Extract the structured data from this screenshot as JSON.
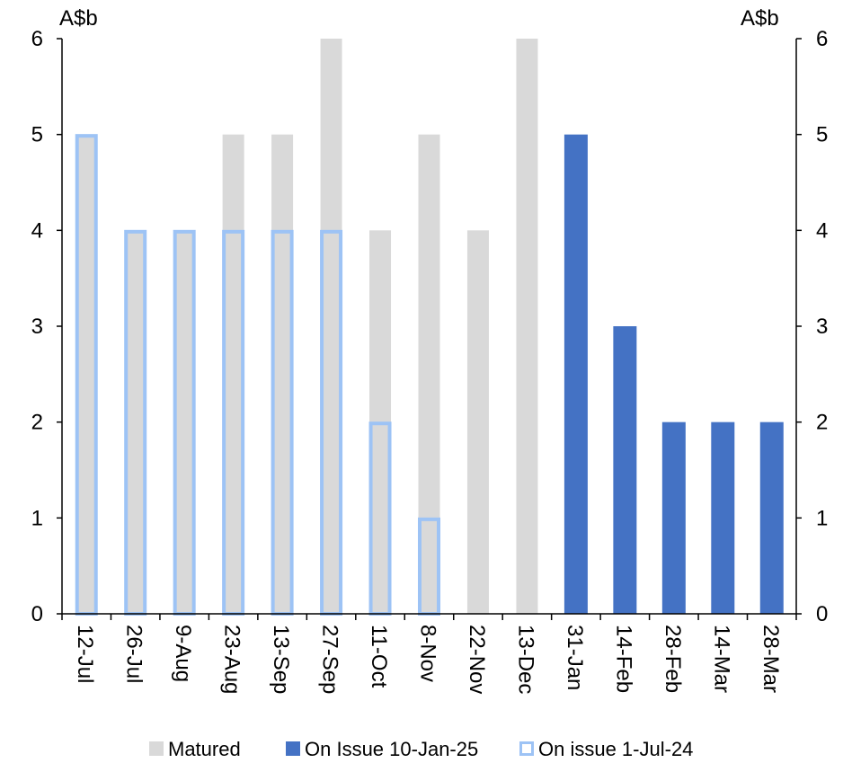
{
  "chart_data": {
    "type": "bar",
    "title": "",
    "y_unit_left": "A$b",
    "y_unit_right": "A$b",
    "ylim": [
      0,
      6
    ],
    "yticks": [
      0,
      1,
      2,
      3,
      4,
      5,
      6
    ],
    "categories": [
      "12-Jul",
      "26-Jul",
      "9-Aug",
      "23-Aug",
      "13-Sep",
      "27-Sep",
      "11-Oct",
      "8-Nov",
      "22-Nov",
      "13-Dec",
      "31-Jan",
      "14-Feb",
      "28-Feb",
      "14-Mar",
      "28-Mar"
    ],
    "series": [
      {
        "name": "Matured",
        "color": "#d9d9d9",
        "values": [
          5,
          4,
          4,
          5,
          5,
          6,
          4,
          5,
          4,
          6,
          null,
          null,
          null,
          null,
          null
        ]
      },
      {
        "name": "On Issue 10-Jan-25",
        "color": "#4472c4",
        "values": [
          null,
          null,
          null,
          null,
          null,
          null,
          null,
          null,
          null,
          null,
          5,
          3,
          2,
          2,
          2
        ]
      },
      {
        "name": "On issue 1-Jul-24",
        "color": "#9dc3f5",
        "style": "outline",
        "values": [
          5,
          4,
          4,
          4,
          4,
          4,
          2,
          1,
          null,
          null,
          null,
          null,
          null,
          null,
          null
        ]
      }
    ],
    "legend_position": "bottom",
    "grid": false
  }
}
